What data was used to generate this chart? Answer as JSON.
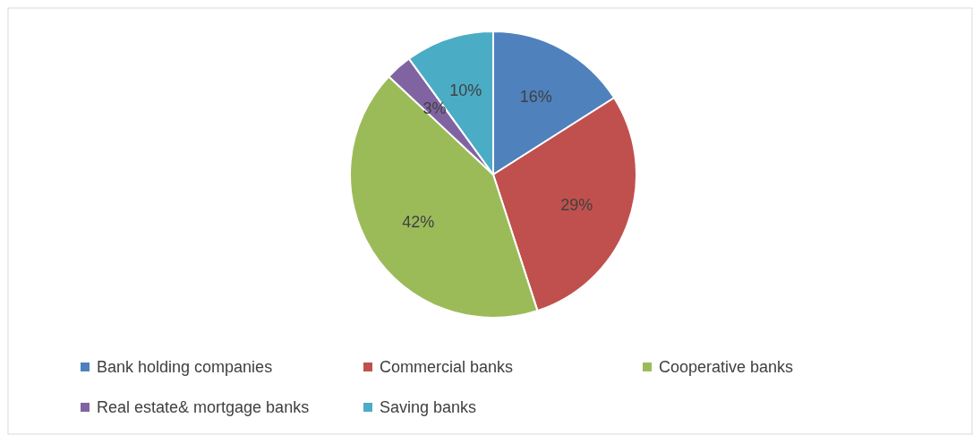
{
  "chart_data": {
    "type": "pie",
    "categories": [
      "Bank holding companies",
      "Commercial banks",
      "Cooperative banks",
      "Real estate& mortgage banks",
      "Saving banks"
    ],
    "values": [
      16,
      29,
      42,
      3,
      10
    ],
    "colors": [
      "#4f81bd",
      "#c0504d",
      "#9bbb59",
      "#8064a2",
      "#4bacc6"
    ],
    "value_labels": [
      "16%",
      "29%",
      "42%",
      "3%",
      "10%"
    ],
    "legend": "bottom"
  }
}
